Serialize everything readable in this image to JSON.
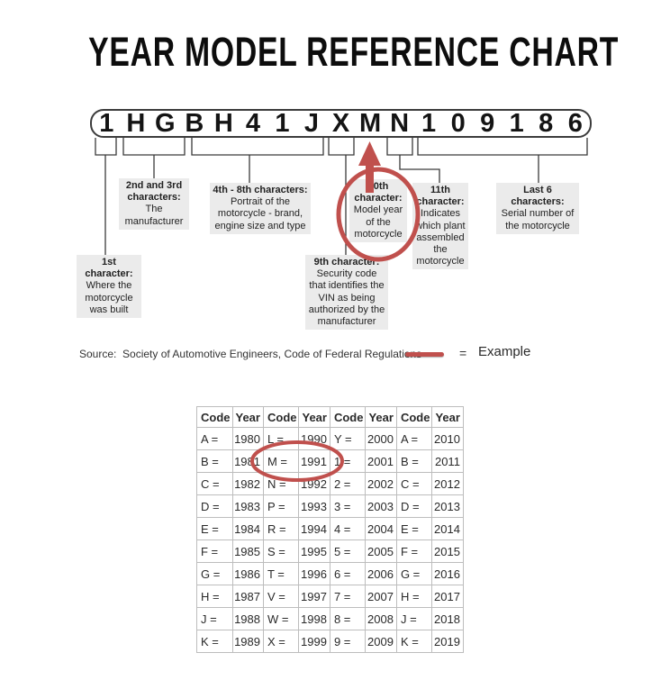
{
  "title": "YEAR MODEL REFERENCE CHART",
  "colors": {
    "accent_red": "#c0504d",
    "callout_bg": "#ebebeb"
  },
  "vin": {
    "characters": [
      "1",
      "H",
      "G",
      "B",
      "H",
      "4",
      "1",
      "J",
      "X",
      "M",
      "N",
      "1",
      "0",
      "9",
      "1",
      "8",
      "6"
    ]
  },
  "callouts": {
    "first": {
      "heading": "1st character:",
      "body": "Where the motorcycle was built"
    },
    "second_third": {
      "heading": "2nd and 3rd characters:",
      "body": "The manufacturer"
    },
    "fourth_eighth": {
      "heading": "4th - 8th characters:",
      "body": "Portrait of the motorcycle - brand, engine size and type"
    },
    "ninth": {
      "heading": "9th character:",
      "body": "Security code that identifies the VIN as being authorized by the manufacturer"
    },
    "tenth": {
      "heading": "10th character:",
      "body": "Model year of the motorcycle"
    },
    "eleventh": {
      "heading": "11th character:",
      "body": "Indicates which plant assembled the motorcycle"
    },
    "last_six": {
      "heading": "Last 6 characters:",
      "body": "Serial number of the motorcycle"
    }
  },
  "annotations": {
    "arrow_points_to": "M",
    "circled_callout": "10th character",
    "circled_table_entry": "M = 1991"
  },
  "footer": {
    "source": "Source:  Society of Automotive Engineers, Code of Federal Regulations",
    "legend_equals": "=",
    "legend_label": "Example"
  },
  "table": {
    "headers": [
      "Code",
      "Year",
      "Code",
      "Year",
      "Code",
      "Year",
      "Code",
      "Year"
    ],
    "rows": [
      [
        "A =",
        "1980",
        "L =",
        "1990",
        "Y =",
        "2000",
        "A =",
        "2010"
      ],
      [
        "B =",
        "1981",
        "M =",
        "1991",
        "1 =",
        "2001",
        "B =",
        "2011"
      ],
      [
        "C =",
        "1982",
        "N =",
        "1992",
        "2 =",
        "2002",
        "C =",
        "2012"
      ],
      [
        "D =",
        "1983",
        "P =",
        "1993",
        "3 =",
        "2003",
        "D =",
        "2013"
      ],
      [
        "E =",
        "1984",
        "R =",
        "1994",
        "4 =",
        "2004",
        "E =",
        "2014"
      ],
      [
        "F =",
        "1985",
        "S =",
        "1995",
        "5 =",
        "2005",
        "F =",
        "2015"
      ],
      [
        "G =",
        "1986",
        "T =",
        "1996",
        "6 =",
        "2006",
        "G =",
        "2016"
      ],
      [
        "H =",
        "1987",
        "V =",
        "1997",
        "7 =",
        "2007",
        "H =",
        "2017"
      ],
      [
        "J =",
        "1988",
        "W =",
        "1998",
        "8 =",
        "2008",
        "J =",
        "2018"
      ],
      [
        "K =",
        "1989",
        "X =",
        "1999",
        "9 =",
        "2009",
        "K =",
        "2019"
      ]
    ]
  }
}
